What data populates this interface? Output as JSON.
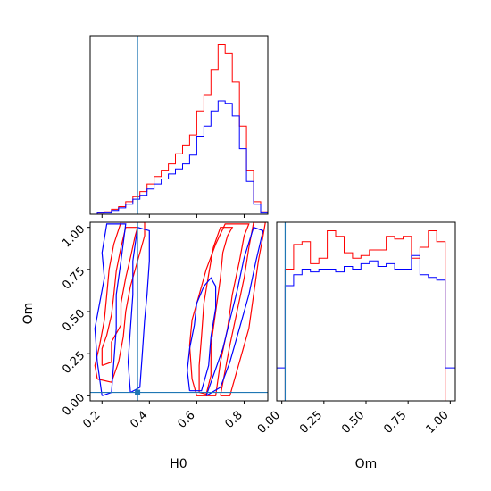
{
  "chart_data": {
    "type": "corner",
    "parameters": [
      "H0",
      "Om"
    ],
    "xlabel": "H0",
    "ylabel": "Om",
    "bottom_right_xlabel": "Om",
    "truths": {
      "H0": 0.35,
      "Om": 0.02
    },
    "truth_color": "#1f77b4",
    "ranges": {
      "H0": [
        0.15,
        0.9
      ],
      "Om": [
        -0.03,
        1.03
      ]
    },
    "ticks": {
      "H0": [
        "0.2",
        "0.4",
        "0.6",
        "0.8"
      ],
      "Om": [
        "0.00",
        "0.25",
        "0.50",
        "0.75",
        "1.00"
      ]
    },
    "series": [
      {
        "color": "#ff0000"
      },
      {
        "color": "#0000ff"
      }
    ],
    "hist_H0": {
      "edges": [
        0.15,
        0.18,
        0.21,
        0.24,
        0.27,
        0.3,
        0.33,
        0.36,
        0.39,
        0.42,
        0.45,
        0.48,
        0.51,
        0.54,
        0.57,
        0.6,
        0.63,
        0.66,
        0.69,
        0.72,
        0.75,
        0.78,
        0.81,
        0.84,
        0.87,
        0.9
      ],
      "counts": [
        [
          0,
          1,
          2,
          4,
          6,
          10,
          14,
          18,
          24,
          30,
          35,
          40,
          48,
          55,
          63,
          82,
          95,
          115,
          135,
          128,
          105,
          70,
          35,
          10,
          2
        ],
        [
          0,
          1,
          1,
          3,
          5,
          8,
          12,
          15,
          20,
          24,
          28,
          32,
          36,
          40,
          47,
          62,
          70,
          82,
          90,
          88,
          78,
          52,
          26,
          8,
          1
        ]
      ]
    },
    "hist_Om": {
      "edges": [
        -0.03,
        0.02,
        0.07,
        0.12,
        0.17,
        0.22,
        0.27,
        0.32,
        0.37,
        0.42,
        0.47,
        0.52,
        0.57,
        0.62,
        0.67,
        0.72,
        0.77,
        0.82,
        0.87,
        0.92,
        0.97,
        1.03
      ],
      "counts": [
        [
          0,
          48,
          57,
          58,
          50,
          52,
          62,
          60,
          54,
          52,
          53,
          55,
          55,
          60,
          59,
          60,
          52,
          56,
          62,
          58,
          0
        ],
        [
          12,
          42,
          46,
          48,
          47,
          48,
          48,
          47,
          49,
          48,
          50,
          51,
          49,
          50,
          48,
          48,
          53,
          46,
          45,
          44,
          12
        ]
      ]
    },
    "contours": [
      [
        [
          [
            0.2,
            0.18
          ],
          [
            0.24,
            0.2
          ],
          [
            0.24,
            0.32
          ],
          [
            0.28,
            0.42
          ],
          [
            0.28,
            0.55
          ],
          [
            0.3,
            0.7
          ],
          [
            0.32,
            0.82
          ],
          [
            0.34,
            0.95
          ],
          [
            0.35,
            1.0
          ],
          [
            0.3,
            1.0
          ],
          [
            0.28,
            0.88
          ],
          [
            0.26,
            0.74
          ],
          [
            0.25,
            0.6
          ],
          [
            0.24,
            0.48
          ],
          [
            0.22,
            0.36
          ],
          [
            0.2,
            0.28
          ],
          [
            0.2,
            0.18
          ]
        ],
        [
          [
            0.18,
            0.1
          ],
          [
            0.24,
            0.08
          ],
          [
            0.27,
            0.2
          ],
          [
            0.29,
            0.35
          ],
          [
            0.3,
            0.5
          ],
          [
            0.32,
            0.65
          ],
          [
            0.35,
            0.8
          ],
          [
            0.38,
            0.95
          ],
          [
            0.38,
            1.03
          ],
          [
            0.28,
            1.03
          ],
          [
            0.25,
            0.9
          ],
          [
            0.23,
            0.75
          ],
          [
            0.22,
            0.6
          ],
          [
            0.21,
            0.45
          ],
          [
            0.19,
            0.3
          ],
          [
            0.17,
            0.18
          ],
          [
            0.18,
            0.1
          ]
        ],
        [
          [
            0.61,
            0.02
          ],
          [
            0.64,
            0.01
          ],
          [
            0.66,
            0.12
          ],
          [
            0.66,
            0.3
          ],
          [
            0.68,
            0.5
          ],
          [
            0.7,
            0.7
          ],
          [
            0.71,
            0.85
          ],
          [
            0.73,
            0.95
          ],
          [
            0.75,
            1.0
          ],
          [
            0.7,
            1.0
          ],
          [
            0.67,
            0.88
          ],
          [
            0.65,
            0.72
          ],
          [
            0.63,
            0.55
          ],
          [
            0.62,
            0.35
          ],
          [
            0.61,
            0.18
          ],
          [
            0.61,
            0.02
          ]
        ],
        [
          [
            0.58,
            0.1
          ],
          [
            0.6,
            0.0
          ],
          [
            0.68,
            0.0
          ],
          [
            0.7,
            0.2
          ],
          [
            0.73,
            0.4
          ],
          [
            0.75,
            0.6
          ],
          [
            0.78,
            0.8
          ],
          [
            0.8,
            0.95
          ],
          [
            0.82,
            1.02
          ],
          [
            0.72,
            1.02
          ],
          [
            0.68,
            0.9
          ],
          [
            0.64,
            0.75
          ],
          [
            0.61,
            0.6
          ],
          [
            0.58,
            0.45
          ],
          [
            0.57,
            0.3
          ],
          [
            0.58,
            0.1
          ]
        ],
        [
          [
            0.7,
            0.0
          ],
          [
            0.74,
            0.0
          ],
          [
            0.78,
            0.2
          ],
          [
            0.82,
            0.4
          ],
          [
            0.84,
            0.6
          ],
          [
            0.86,
            0.8
          ],
          [
            0.88,
            0.95
          ],
          [
            0.89,
            1.03
          ],
          [
            0.84,
            1.03
          ],
          [
            0.82,
            0.88
          ],
          [
            0.8,
            0.7
          ],
          [
            0.77,
            0.5
          ],
          [
            0.74,
            0.3
          ],
          [
            0.72,
            0.15
          ],
          [
            0.7,
            0.0
          ]
        ]
      ],
      [
        [
          [
            0.2,
            0.0
          ],
          [
            0.24,
            0.02
          ],
          [
            0.25,
            0.2
          ],
          [
            0.26,
            0.4
          ],
          [
            0.26,
            0.6
          ],
          [
            0.28,
            0.8
          ],
          [
            0.3,
            1.02
          ],
          [
            0.22,
            1.02
          ],
          [
            0.2,
            0.85
          ],
          [
            0.21,
            0.7
          ],
          [
            0.19,
            0.55
          ],
          [
            0.17,
            0.4
          ],
          [
            0.18,
            0.2
          ],
          [
            0.2,
            0.0
          ]
        ],
        [
          [
            0.32,
            0.02
          ],
          [
            0.36,
            0.05
          ],
          [
            0.37,
            0.25
          ],
          [
            0.38,
            0.45
          ],
          [
            0.39,
            0.6
          ],
          [
            0.4,
            0.8
          ],
          [
            0.4,
            0.98
          ],
          [
            0.35,
            1.0
          ],
          [
            0.33,
            0.8
          ],
          [
            0.33,
            0.6
          ],
          [
            0.32,
            0.4
          ],
          [
            0.31,
            0.2
          ],
          [
            0.32,
            0.02
          ]
        ],
        [
          [
            0.57,
            0.03
          ],
          [
            0.62,
            0.03
          ],
          [
            0.65,
            0.18
          ],
          [
            0.66,
            0.35
          ],
          [
            0.68,
            0.52
          ],
          [
            0.68,
            0.65
          ],
          [
            0.66,
            0.7
          ],
          [
            0.63,
            0.65
          ],
          [
            0.6,
            0.55
          ],
          [
            0.59,
            0.42
          ],
          [
            0.57,
            0.28
          ],
          [
            0.56,
            0.15
          ],
          [
            0.57,
            0.03
          ]
        ],
        [
          [
            0.64,
            0.0
          ],
          [
            0.7,
            0.05
          ],
          [
            0.74,
            0.2
          ],
          [
            0.78,
            0.4
          ],
          [
            0.82,
            0.6
          ],
          [
            0.85,
            0.8
          ],
          [
            0.88,
            0.98
          ],
          [
            0.84,
            1.0
          ],
          [
            0.8,
            0.82
          ],
          [
            0.77,
            0.62
          ],
          [
            0.74,
            0.45
          ],
          [
            0.71,
            0.28
          ],
          [
            0.67,
            0.12
          ],
          [
            0.64,
            0.0
          ]
        ]
      ]
    ]
  }
}
